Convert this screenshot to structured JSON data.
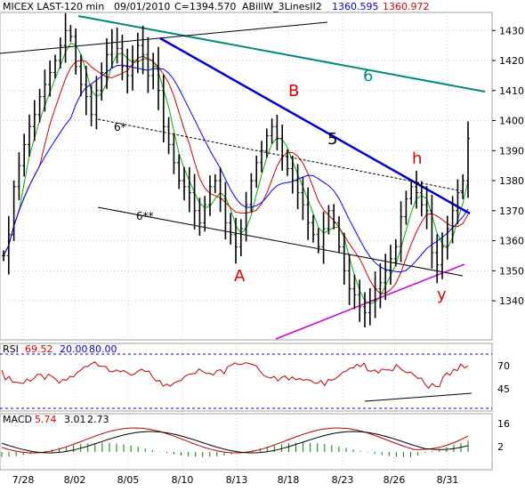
{
  "header": {
    "symbol": "MICEX LAST-120 min",
    "date": "09/01/2010",
    "close": "C=1394.570",
    "indicator": "ABillW_3LinesII2",
    "band_upper": "1360.595",
    "band_lower": "1360.972"
  },
  "colors": {
    "background": "#ffffff",
    "grid": "#c8c8c8",
    "price": "#000000",
    "blue_ma": "#0000ff",
    "red_ma": "#d00000",
    "green_ma": "#00b000",
    "trend_5": "#0000cc",
    "trend_6": "#008b7a",
    "support": "#d000d0",
    "label_red": "#e00000",
    "label_teal": "#008b7a",
    "rsi": "#c00000",
    "rsi_level": "#0000cc",
    "macd_line": "#c00000",
    "macd_signal": "#000000",
    "macd_hist": "#008000"
  },
  "chart_data": [
    {
      "type": "line",
      "title": "MICEX LAST-120 min",
      "x": [
        "7/28",
        "8/02",
        "8/05",
        "8/10",
        "8/13",
        "8/18",
        "8/23",
        "8/26",
        "8/31"
      ],
      "ylim": [
        1327,
        1436
      ],
      "y_ticks": [
        1340,
        1350,
        1360,
        1370,
        1380,
        1390,
        1400,
        1410,
        1420,
        1430
      ],
      "grid": true,
      "price": [
        1355,
        1362,
        1378,
        1385,
        1392,
        1398,
        1402,
        1408,
        1412,
        1416,
        1420,
        1425,
        1430,
        1428,
        1418,
        1412,
        1408,
        1402,
        1410,
        1416,
        1422,
        1426,
        1424,
        1418,
        1415,
        1420,
        1425,
        1422,
        1415,
        1418,
        1410,
        1398,
        1392,
        1386,
        1380,
        1378,
        1376,
        1370,
        1366,
        1372,
        1378,
        1380,
        1374,
        1366,
        1362,
        1358,
        1364,
        1372,
        1380,
        1386,
        1390,
        1395,
        1398,
        1394,
        1388,
        1384,
        1380,
        1376,
        1372,
        1366,
        1362,
        1358,
        1364,
        1370,
        1366,
        1358,
        1350,
        1344,
        1342,
        1338,
        1336,
        1340,
        1344,
        1346,
        1350,
        1354,
        1358,
        1368,
        1374,
        1378,
        1376,
        1372,
        1370,
        1356,
        1352,
        1358,
        1364,
        1370,
        1376,
        1380,
        1394
      ],
      "annotations": [
        "A",
        "B",
        "5",
        "6",
        "h",
        "y",
        "6*",
        "6**"
      ]
    },
    {
      "type": "line",
      "title": "RSI",
      "series": [
        {
          "name": "RSI",
          "last": "69.52"
        }
      ],
      "levels": [
        "20.00",
        "80.00"
      ],
      "y_ticks": [
        45,
        70
      ]
    },
    {
      "type": "line",
      "title": "MACD",
      "series": [
        {
          "name": "MACD",
          "last": "5.74"
        },
        {
          "name": "signal",
          "last": "3.01"
        },
        {
          "name": "histogram",
          "last": "2.73"
        }
      ],
      "y_ticks": [
        2,
        16
      ]
    }
  ],
  "labels": {
    "A": "A",
    "B": "B",
    "five": "5",
    "six": "6",
    "h": "h",
    "y": "y",
    "six_star": "6*",
    "six_double_star": "6**"
  },
  "rsi": {
    "label": "RSI",
    "value": "69.52",
    "level_low": "20.00",
    "level_high": "80.00",
    "ticks": [
      "70",
      "45"
    ]
  },
  "macd": {
    "label": "MACD",
    "value": "5.74",
    "signal": "3.01",
    "hist": "2.73",
    "ticks": [
      "16",
      "2"
    ]
  }
}
